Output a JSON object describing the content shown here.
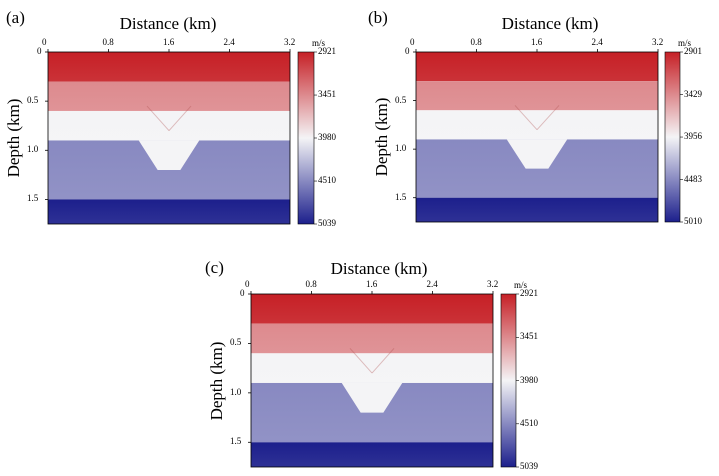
{
  "figure": {
    "panels": [
      {
        "label": "(a)",
        "xlabel": "Distance (km)",
        "ylabel": "Depth (km)",
        "xticks": [
          "0",
          "0.8",
          "1.6",
          "2.4",
          "3.2"
        ],
        "yticks": [
          "0",
          "0.5",
          "1.0",
          "1.5"
        ],
        "unit": "m/s",
        "colorbar_ticks": [
          "2921",
          "3451",
          "3980",
          "4510",
          "5039"
        ]
      },
      {
        "label": "(b)",
        "xlabel": "Distance (km)",
        "ylabel": "Depth (km)",
        "xticks": [
          "0",
          "0.8",
          "1.6",
          "2.4",
          "3.2"
        ],
        "yticks": [
          "0",
          "0.5",
          "1.0",
          "1.5"
        ],
        "unit": "m/s",
        "colorbar_ticks": [
          "2901",
          "3429",
          "3956",
          "4483",
          "5010"
        ]
      },
      {
        "label": "(c)",
        "xlabel": "Distance (km)",
        "ylabel": "Depth (km)",
        "xticks": [
          "0",
          "0.8",
          "1.6",
          "2.4",
          "3.2"
        ],
        "yticks": [
          "0",
          "0.5",
          "1.0",
          "1.5"
        ],
        "unit": "m/s",
        "colorbar_ticks": [
          "2921",
          "3451",
          "3980",
          "4510",
          "5039"
        ]
      }
    ],
    "colors": {
      "low": "#c62026",
      "mid": "#f4f4f6",
      "high": "#1c1f8c"
    }
  },
  "chart_data": [
    {
      "type": "heatmap",
      "xlabel": "Distance (km)",
      "ylabel": "Depth (km)",
      "xlim": [
        0,
        3.2
      ],
      "ylim": [
        0,
        1.75
      ],
      "colorbar": {
        "unit": "m/s",
        "min": 2921,
        "max": 5039,
        "ticks": [
          2921,
          3451,
          3980,
          4510,
          5039
        ]
      },
      "layers": [
        {
          "top_depth": 0.0,
          "bottom_depth": 0.3,
          "velocity": 2921
        },
        {
          "top_depth": 0.3,
          "bottom_depth": 0.6,
          "velocity": 3451
        },
        {
          "top_depth": 0.6,
          "bottom_depth": 0.9,
          "velocity": 3980
        },
        {
          "top_depth": 0.9,
          "bottom_depth": 1.5,
          "velocity": 4510
        },
        {
          "top_depth": 1.5,
          "bottom_depth": 1.75,
          "velocity": 5039
        }
      ],
      "trough": {
        "top_left_x": 1.2,
        "top_right_x": 2.0,
        "bottom_left_x": 1.45,
        "bottom_right_x": 1.75,
        "top_depth": 0.9,
        "bottom_depth": 1.2
      }
    },
    {
      "type": "heatmap",
      "xlabel": "Distance (km)",
      "ylabel": "Depth (km)",
      "xlim": [
        0,
        3.2
      ],
      "ylim": [
        0,
        1.75
      ],
      "colorbar": {
        "unit": "m/s",
        "min": 2901,
        "max": 5010,
        "ticks": [
          2901,
          3429,
          3956,
          4483,
          5010
        ]
      },
      "layers": [
        {
          "top_depth": 0.0,
          "bottom_depth": 0.3,
          "velocity": 2901
        },
        {
          "top_depth": 0.3,
          "bottom_depth": 0.6,
          "velocity": 3429
        },
        {
          "top_depth": 0.6,
          "bottom_depth": 0.9,
          "velocity": 3956
        },
        {
          "top_depth": 0.9,
          "bottom_depth": 1.5,
          "velocity": 4483
        },
        {
          "top_depth": 1.5,
          "bottom_depth": 1.75,
          "velocity": 5010
        }
      ],
      "trough": {
        "top_left_x": 1.2,
        "top_right_x": 2.0,
        "bottom_left_x": 1.45,
        "bottom_right_x": 1.75,
        "top_depth": 0.9,
        "bottom_depth": 1.2
      }
    },
    {
      "type": "heatmap",
      "xlabel": "Distance (km)",
      "ylabel": "Depth (km)",
      "xlim": [
        0,
        3.2
      ],
      "ylim": [
        0,
        1.75
      ],
      "colorbar": {
        "unit": "m/s",
        "min": 2921,
        "max": 5039,
        "ticks": [
          2921,
          3451,
          3980,
          4510,
          5039
        ]
      },
      "layers": [
        {
          "top_depth": 0.0,
          "bottom_depth": 0.3,
          "velocity": 2921
        },
        {
          "top_depth": 0.3,
          "bottom_depth": 0.6,
          "velocity": 3451
        },
        {
          "top_depth": 0.6,
          "bottom_depth": 0.9,
          "velocity": 3980
        },
        {
          "top_depth": 0.9,
          "bottom_depth": 1.5,
          "velocity": 4510
        },
        {
          "top_depth": 1.5,
          "bottom_depth": 1.75,
          "velocity": 5039
        }
      ],
      "trough": {
        "top_left_x": 1.2,
        "top_right_x": 2.0,
        "bottom_left_x": 1.45,
        "bottom_right_x": 1.75,
        "top_depth": 0.9,
        "bottom_depth": 1.2
      }
    }
  ]
}
